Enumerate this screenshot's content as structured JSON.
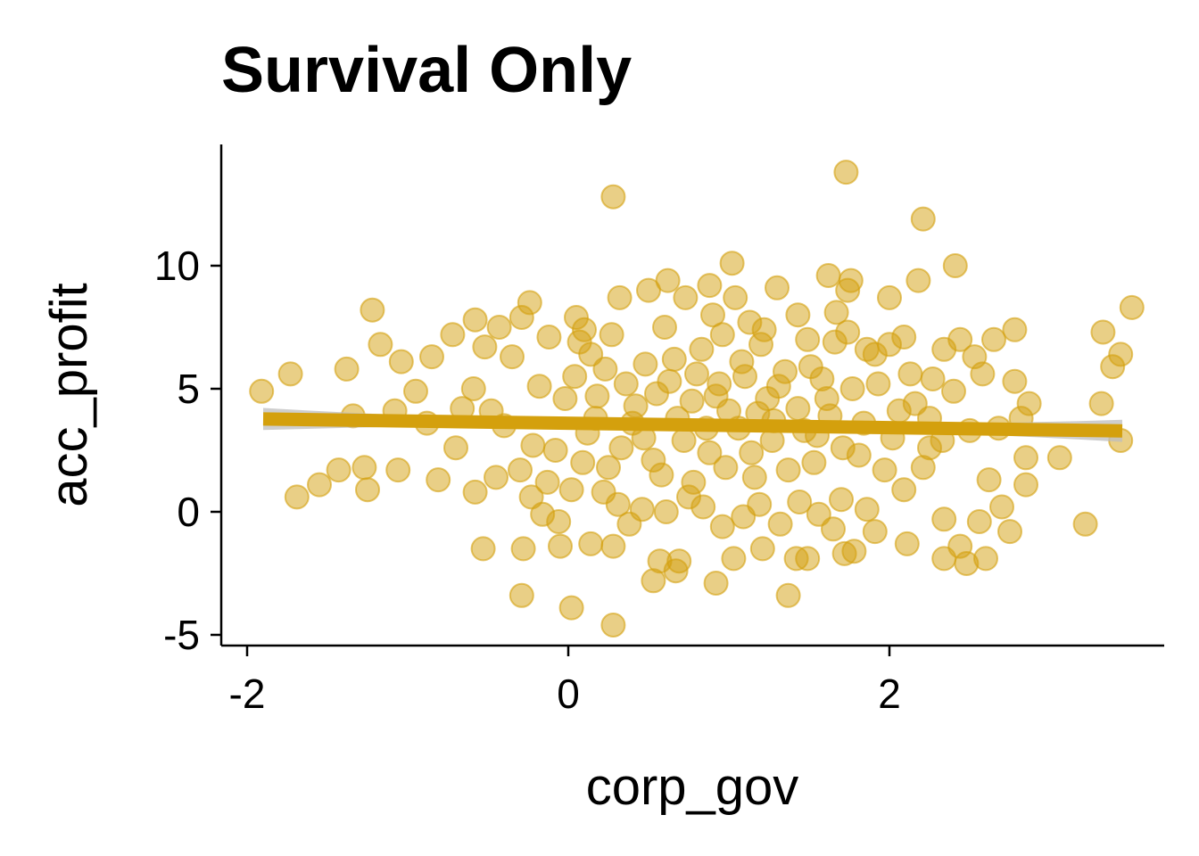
{
  "chart_data": {
    "type": "scatter",
    "title": "Survival Only",
    "xlabel": "corp_gov",
    "ylabel": "acc_profit",
    "xlim": [
      -2.15,
      3.7
    ],
    "ylim": [
      -5.5,
      14.8
    ],
    "x_ticks": [
      -2,
      0,
      2
    ],
    "y_ticks": [
      -5,
      0,
      5,
      10
    ],
    "x_tick_labels": [
      "-2",
      "0",
      "2"
    ],
    "y_tick_labels": [
      "-5",
      "0",
      "5",
      "10"
    ],
    "grid": false,
    "legend": "none",
    "point_color": "#d4a00d",
    "line_color": "#d4a00d",
    "ci_color": "#bdbdbd",
    "regression": {
      "x_range": [
        -1.9,
        3.45
      ],
      "intercept": 3.6,
      "slope": -0.09,
      "ci_halfwidth_edge": 0.45,
      "ci_halfwidth_center": 0.06
    },
    "series": [
      {
        "points": [
          [
            1.73,
            13.8
          ],
          [
            0.28,
            12.8
          ],
          [
            2.21,
            11.9
          ],
          [
            2.41,
            10.0
          ],
          [
            1.02,
            10.1
          ],
          [
            -1.91,
            4.9
          ],
          [
            -1.73,
            5.6
          ],
          [
            -1.38,
            5.8
          ],
          [
            -1.17,
            6.8
          ],
          [
            -1.22,
            8.2
          ],
          [
            -1.69,
            0.6
          ],
          [
            -1.55,
            1.1
          ],
          [
            -1.43,
            1.7
          ],
          [
            -1.27,
            1.8
          ],
          [
            -1.25,
            0.9
          ],
          [
            -1.06,
            1.7
          ],
          [
            -1.34,
            3.9
          ],
          [
            -1.08,
            4.1
          ],
          [
            -0.81,
            1.3
          ],
          [
            -0.88,
            3.6
          ],
          [
            -0.95,
            4.9
          ],
          [
            -1.04,
            6.1
          ],
          [
            -0.85,
            6.3
          ],
          [
            -0.72,
            7.2
          ],
          [
            -0.58,
            7.8
          ],
          [
            -0.43,
            7.5
          ],
          [
            -0.24,
            8.5
          ],
          [
            -0.29,
            7.9
          ],
          [
            -0.12,
            7.1
          ],
          [
            0.05,
            7.9
          ],
          [
            0.1,
            7.4
          ],
          [
            0.32,
            8.7
          ],
          [
            0.5,
            9.0
          ],
          [
            0.62,
            9.4
          ],
          [
            0.73,
            8.7
          ],
          [
            0.88,
            9.2
          ],
          [
            0.9,
            8.0
          ],
          [
            1.04,
            8.7
          ],
          [
            1.13,
            7.7
          ],
          [
            1.3,
            9.1
          ],
          [
            1.43,
            8.0
          ],
          [
            1.62,
            9.6
          ],
          [
            1.76,
            9.4
          ],
          [
            1.74,
            9.0
          ],
          [
            1.67,
            8.1
          ],
          [
            2.0,
            8.7
          ],
          [
            2.18,
            9.4
          ],
          [
            2.34,
            6.6
          ],
          [
            2.44,
            7.0
          ],
          [
            2.53,
            6.3
          ],
          [
            2.65,
            7.0
          ],
          [
            2.78,
            7.4
          ],
          [
            2.58,
            5.6
          ],
          [
            2.27,
            5.4
          ],
          [
            3.33,
            7.3
          ],
          [
            3.44,
            6.4
          ],
          [
            3.39,
            5.9
          ],
          [
            3.51,
            8.3
          ],
          [
            3.32,
            4.4
          ],
          [
            3.44,
            2.9
          ],
          [
            3.22,
            -0.5
          ],
          [
            3.06,
            2.2
          ],
          [
            2.85,
            1.1
          ],
          [
            2.75,
            -0.8
          ],
          [
            2.6,
            -1.9
          ],
          [
            2.48,
            -2.1
          ],
          [
            2.34,
            -1.9
          ],
          [
            2.44,
            -1.4
          ],
          [
            2.56,
            -0.4
          ],
          [
            2.78,
            5.3
          ],
          [
            2.87,
            4.4
          ],
          [
            2.82,
            3.8
          ],
          [
            2.68,
            3.4
          ],
          [
            2.85,
            2.2
          ],
          [
            -0.53,
            -1.5
          ],
          [
            -0.29,
            -3.4
          ],
          [
            -0.28,
            -1.5
          ],
          [
            -0.05,
            -1.4
          ],
          [
            0.02,
            -3.9
          ],
          [
            0.28,
            -4.6
          ],
          [
            0.14,
            -1.3
          ],
          [
            0.28,
            -1.4
          ],
          [
            0.53,
            -2.8
          ],
          [
            0.57,
            -2.0
          ],
          [
            0.67,
            -2.4
          ],
          [
            0.69,
            -2.0
          ],
          [
            0.92,
            -2.9
          ],
          [
            1.03,
            -1.9
          ],
          [
            1.21,
            -1.5
          ],
          [
            1.37,
            -3.4
          ],
          [
            1.42,
            -1.9
          ],
          [
            1.49,
            -1.9
          ],
          [
            1.72,
            -1.7
          ],
          [
            1.78,
            -1.6
          ],
          [
            1.65,
            -0.7
          ],
          [
            1.91,
            -0.8
          ],
          [
            2.11,
            -1.3
          ],
          [
            2.34,
            -0.3
          ],
          [
            2.09,
            0.9
          ],
          [
            2.21,
            1.8
          ],
          [
            2.25,
            2.6
          ],
          [
            2.33,
            2.9
          ],
          [
            2.25,
            3.8
          ],
          [
            2.06,
            4.1
          ],
          [
            2.16,
            4.4
          ],
          [
            2.0,
            6.8
          ],
          [
            2.09,
            7.1
          ],
          [
            1.93,
            5.2
          ],
          [
            1.86,
            6.6
          ],
          [
            1.81,
            2.3
          ],
          [
            -0.58,
            0.8
          ],
          [
            -0.45,
            1.4
          ],
          [
            -0.3,
            1.7
          ],
          [
            -0.22,
            2.7
          ],
          [
            -0.4,
            3.5
          ],
          [
            -0.48,
            4.1
          ],
          [
            -0.59,
            5.0
          ],
          [
            -0.66,
            4.2
          ],
          [
            -0.7,
            2.6
          ],
          [
            -0.52,
            6.7
          ],
          [
            -0.35,
            6.3
          ],
          [
            -0.18,
            5.1
          ],
          [
            -0.16,
            -0.1
          ],
          [
            -0.06,
            -0.4
          ],
          [
            0.02,
            0.9
          ],
          [
            0.12,
            3.2
          ],
          [
            0.23,
            5.8
          ],
          [
            0.14,
            6.4
          ],
          [
            0.33,
            2.6
          ],
          [
            0.42,
            4.3
          ],
          [
            0.48,
            6.0
          ],
          [
            0.58,
            1.5
          ],
          [
            0.63,
            5.3
          ],
          [
            0.72,
            2.9
          ],
          [
            0.77,
            4.5
          ],
          [
            0.86,
            3.4
          ],
          [
            0.83,
            6.6
          ],
          [
            0.94,
            5.2
          ],
          [
            0.98,
            1.8
          ],
          [
            1.06,
            3.4
          ],
          [
            1.1,
            5.5
          ],
          [
            1.18,
            4.0
          ],
          [
            1.2,
            6.8
          ],
          [
            1.27,
            2.9
          ],
          [
            1.31,
            5.1
          ],
          [
            1.37,
            1.7
          ],
          [
            1.43,
            4.2
          ],
          [
            1.51,
            5.9
          ],
          [
            1.55,
            3.1
          ],
          [
            1.61,
            4.6
          ],
          [
            1.66,
            6.9
          ],
          [
            1.71,
            2.6
          ],
          [
            1.77,
            5.0
          ],
          [
            1.84,
            3.6
          ],
          [
            1.97,
            1.7
          ],
          [
            0.4,
            3.6
          ],
          [
            0.53,
            2.1
          ],
          [
            0.66,
            6.2
          ],
          [
            0.78,
            1.2
          ],
          [
            0.92,
            4.7
          ],
          [
            1.14,
            2.4
          ],
          [
            1.24,
            4.6
          ],
          [
            1.47,
            3.3
          ],
          [
            1.58,
            5.4
          ],
          [
            0.18,
            4.7
          ],
          [
            0.25,
            1.8
          ],
          [
            0.36,
            5.2
          ],
          [
            0.47,
            3.0
          ],
          [
            0.55,
            4.8
          ],
          [
            0.68,
            3.8
          ],
          [
            0.8,
            5.6
          ],
          [
            0.88,
            2.4
          ],
          [
            1.0,
            4.1
          ],
          [
            1.08,
            6.1
          ],
          [
            1.16,
            1.4
          ],
          [
            1.28,
            3.7
          ],
          [
            1.35,
            5.7
          ],
          [
            1.53,
            2.0
          ],
          [
            1.63,
            3.9
          ],
          [
            -0.08,
            2.5
          ],
          [
            -0.02,
            4.6
          ],
          [
            0.04,
            5.5
          ],
          [
            0.09,
            2.0
          ],
          [
            0.17,
            3.8
          ],
          [
            0.22,
            0.8
          ],
          [
            0.31,
            0.3
          ],
          [
            0.38,
            -0.5
          ],
          [
            0.46,
            0.1
          ],
          [
            0.61,
            0.0
          ],
          [
            0.75,
            0.6
          ],
          [
            0.84,
            0.2
          ],
          [
            0.96,
            -0.6
          ],
          [
            1.09,
            -0.2
          ],
          [
            1.19,
            0.3
          ],
          [
            1.32,
            -0.5
          ],
          [
            1.44,
            0.4
          ],
          [
            1.56,
            -0.1
          ],
          [
            1.7,
            0.5
          ],
          [
            1.86,
            0.1
          ],
          [
            -0.23,
            0.6
          ],
          [
            -0.13,
            1.2
          ],
          [
            0.07,
            6.9
          ],
          [
            0.27,
            7.2
          ],
          [
            0.6,
            7.5
          ],
          [
            0.96,
            7.2
          ],
          [
            1.22,
            7.4
          ],
          [
            1.49,
            7.0
          ],
          [
            1.74,
            7.3
          ],
          [
            1.91,
            6.4
          ],
          [
            2.02,
            3.0
          ],
          [
            2.13,
            5.6
          ],
          [
            2.4,
            4.9
          ],
          [
            2.5,
            3.3
          ],
          [
            2.62,
            1.3
          ],
          [
            2.7,
            0.2
          ]
        ]
      }
    ]
  }
}
